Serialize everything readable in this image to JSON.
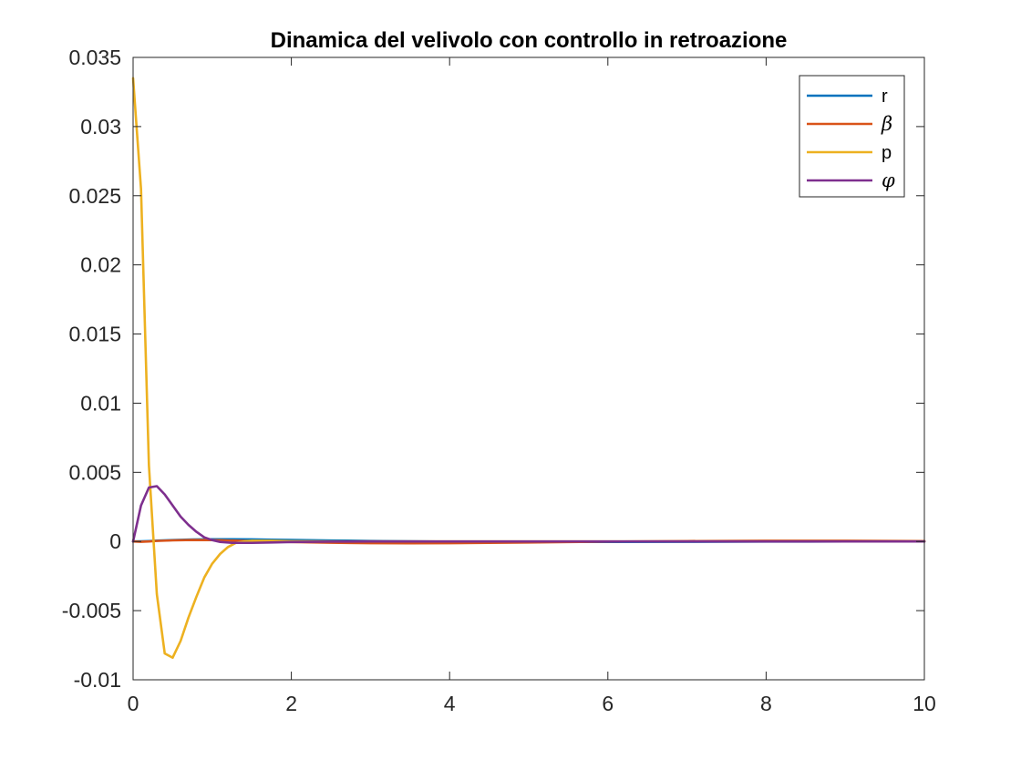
{
  "chart_data": {
    "type": "line",
    "title": "Dinamica del velivolo con controllo in retroazione",
    "xlabel": "",
    "ylabel": "",
    "xlim": [
      0,
      10
    ],
    "ylim": [
      -0.01,
      0.035
    ],
    "x_ticks": [
      0,
      2,
      4,
      6,
      8,
      10
    ],
    "x_tick_labels": [
      "0",
      "2",
      "4",
      "6",
      "8",
      "10"
    ],
    "y_ticks": [
      -0.01,
      -0.005,
      0,
      0.005,
      0.01,
      0.015,
      0.02,
      0.025,
      0.03,
      0.035
    ],
    "y_tick_labels": [
      "-0.01",
      "-0.005",
      "0",
      "0.005",
      "0.01",
      "0.015",
      "0.02",
      "0.025",
      "0.03",
      "0.035"
    ],
    "grid": false,
    "legend_position": "top-right",
    "series": [
      {
        "name": "r",
        "legend_label": "r",
        "color": "#0072BD",
        "x": [
          0,
          0.1,
          0.2,
          0.3,
          0.5,
          0.75,
          1.0,
          1.25,
          1.5,
          1.75,
          2.0,
          2.5,
          3.0,
          3.5,
          4.0,
          5.0,
          6.0,
          7.0,
          8.0,
          9.0,
          10.0
        ],
        "y": [
          0,
          1e-05,
          3e-05,
          6e-05,
          0.0001,
          0.00014,
          0.00016,
          0.00016,
          0.00015,
          0.00013,
          0.00011,
          7e-05,
          4e-05,
          1e-05,
          -1e-05,
          -3e-05,
          -3e-05,
          -2e-05,
          -1e-05,
          0.0,
          0.0
        ]
      },
      {
        "name": "β",
        "legend_label": "β",
        "color": "#D95319",
        "x": [
          0,
          0.1,
          0.2,
          0.3,
          0.5,
          0.75,
          1.0,
          1.5,
          2.0,
          2.5,
          3.0,
          3.5,
          4.0,
          4.5,
          5.0,
          5.5,
          6.0,
          7.0,
          8.0,
          9.0,
          10.0
        ],
        "y": [
          0,
          -2e-05,
          0.0,
          4e-05,
          8e-05,
          0.00011,
          0.0001,
          3e-05,
          -4e-05,
          -9e-05,
          -0.00012,
          -0.00013,
          -0.00012,
          -0.0001,
          -7e-05,
          -4e-05,
          -1e-05,
          3e-05,
          5e-05,
          5e-05,
          3e-05
        ]
      },
      {
        "name": "p",
        "legend_label": "p",
        "color": "#EDB120",
        "x": [
          0,
          0.1,
          0.2,
          0.3,
          0.4,
          0.5,
          0.6,
          0.7,
          0.8,
          0.9,
          1.0,
          1.1,
          1.2,
          1.3,
          1.4,
          1.5,
          1.75,
          2.0,
          2.5,
          3.0,
          4.0,
          5.0,
          6.0,
          8.0,
          10.0
        ],
        "y": [
          0.0335,
          0.0255,
          0.0055,
          -0.0038,
          -0.0081,
          -0.0084,
          -0.0072,
          -0.0055,
          -0.004,
          -0.0026,
          -0.0016,
          -0.0009,
          -0.0004,
          -0.0001,
          0.0,
          5e-05,
          5e-05,
          2e-05,
          0.0,
          0.0,
          0.0,
          0.0,
          0.0,
          0.0,
          0.0
        ]
      },
      {
        "name": "φ",
        "legend_label": "φ",
        "color": "#7E2F8E",
        "x": [
          0,
          0.1,
          0.2,
          0.3,
          0.4,
          0.5,
          0.6,
          0.7,
          0.8,
          0.9,
          1.0,
          1.1,
          1.25,
          1.5,
          1.75,
          2.0,
          2.5,
          3.0,
          4.0,
          5.0,
          6.0,
          8.0,
          10.0
        ],
        "y": [
          0,
          0.0026,
          0.0039,
          0.004,
          0.0034,
          0.0026,
          0.0018,
          0.0012,
          0.0007,
          0.0003,
          0.0001,
          -3e-05,
          -0.0001,
          -0.0001,
          -7e-05,
          -4e-05,
          -1e-05,
          0.0,
          0.0,
          0.0,
          0.0,
          0.0,
          0.0
        ]
      }
    ]
  }
}
